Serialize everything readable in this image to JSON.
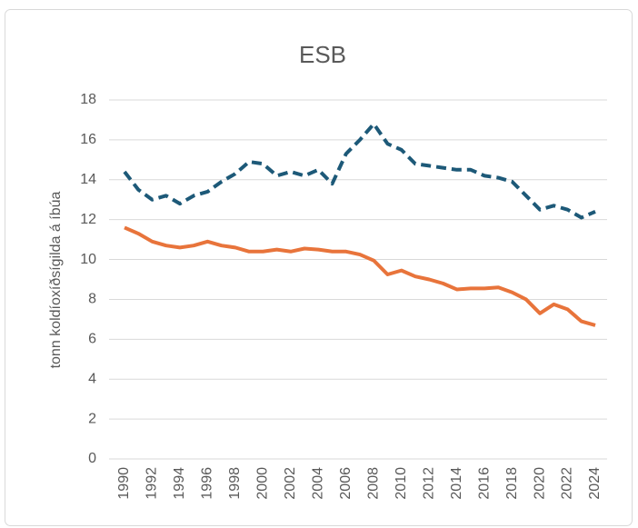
{
  "chart_data": {
    "type": "line",
    "title": "ESB",
    "y_label": "tonn koldíoxíðsígilda á íbúa",
    "x": [
      1990,
      1991,
      1992,
      1993,
      1994,
      1995,
      1996,
      1997,
      1998,
      1999,
      2000,
      2001,
      2002,
      2003,
      2004,
      2005,
      2006,
      2007,
      2008,
      2009,
      2010,
      2011,
      2012,
      2013,
      2014,
      2015,
      2016,
      2017,
      2018,
      2019,
      2020,
      2021,
      2022,
      2023,
      2024
    ],
    "series": [
      {
        "color": "#1d5978",
        "style": "dashed",
        "values": [
          14.4,
          13.5,
          13.0,
          13.2,
          12.8,
          13.2,
          13.4,
          13.9,
          14.3,
          14.9,
          14.8,
          14.2,
          14.4,
          14.2,
          14.5,
          13.8,
          15.3,
          16.0,
          16.8,
          15.8,
          15.5,
          14.8,
          14.7,
          14.6,
          14.5,
          14.5,
          14.2,
          14.1,
          13.9,
          13.2,
          12.5,
          12.7,
          12.5,
          12.1,
          12.4
        ]
      },
      {
        "color": "#e8743b",
        "style": "solid",
        "values": [
          11.6,
          11.3,
          10.9,
          10.7,
          10.6,
          10.7,
          10.9,
          10.7,
          10.6,
          10.4,
          10.4,
          10.5,
          10.4,
          10.55,
          10.5,
          10.4,
          10.4,
          10.25,
          9.95,
          9.25,
          9.45,
          9.15,
          9.0,
          8.8,
          8.5,
          8.55,
          8.55,
          8.6,
          8.35,
          8.0,
          7.3,
          7.75,
          7.5,
          6.9,
          6.7
        ]
      }
    ],
    "xlim": [
      1990,
      2024
    ],
    "xticks": [
      1990,
      1992,
      1994,
      1996,
      1998,
      2000,
      2002,
      2004,
      2006,
      2008,
      2010,
      2012,
      2014,
      2016,
      2018,
      2020,
      2022,
      2024
    ],
    "ylim": [
      0,
      18
    ],
    "yticks": [
      0,
      2,
      4,
      6,
      8,
      10,
      12,
      14,
      16,
      18
    ],
    "grid": true
  }
}
